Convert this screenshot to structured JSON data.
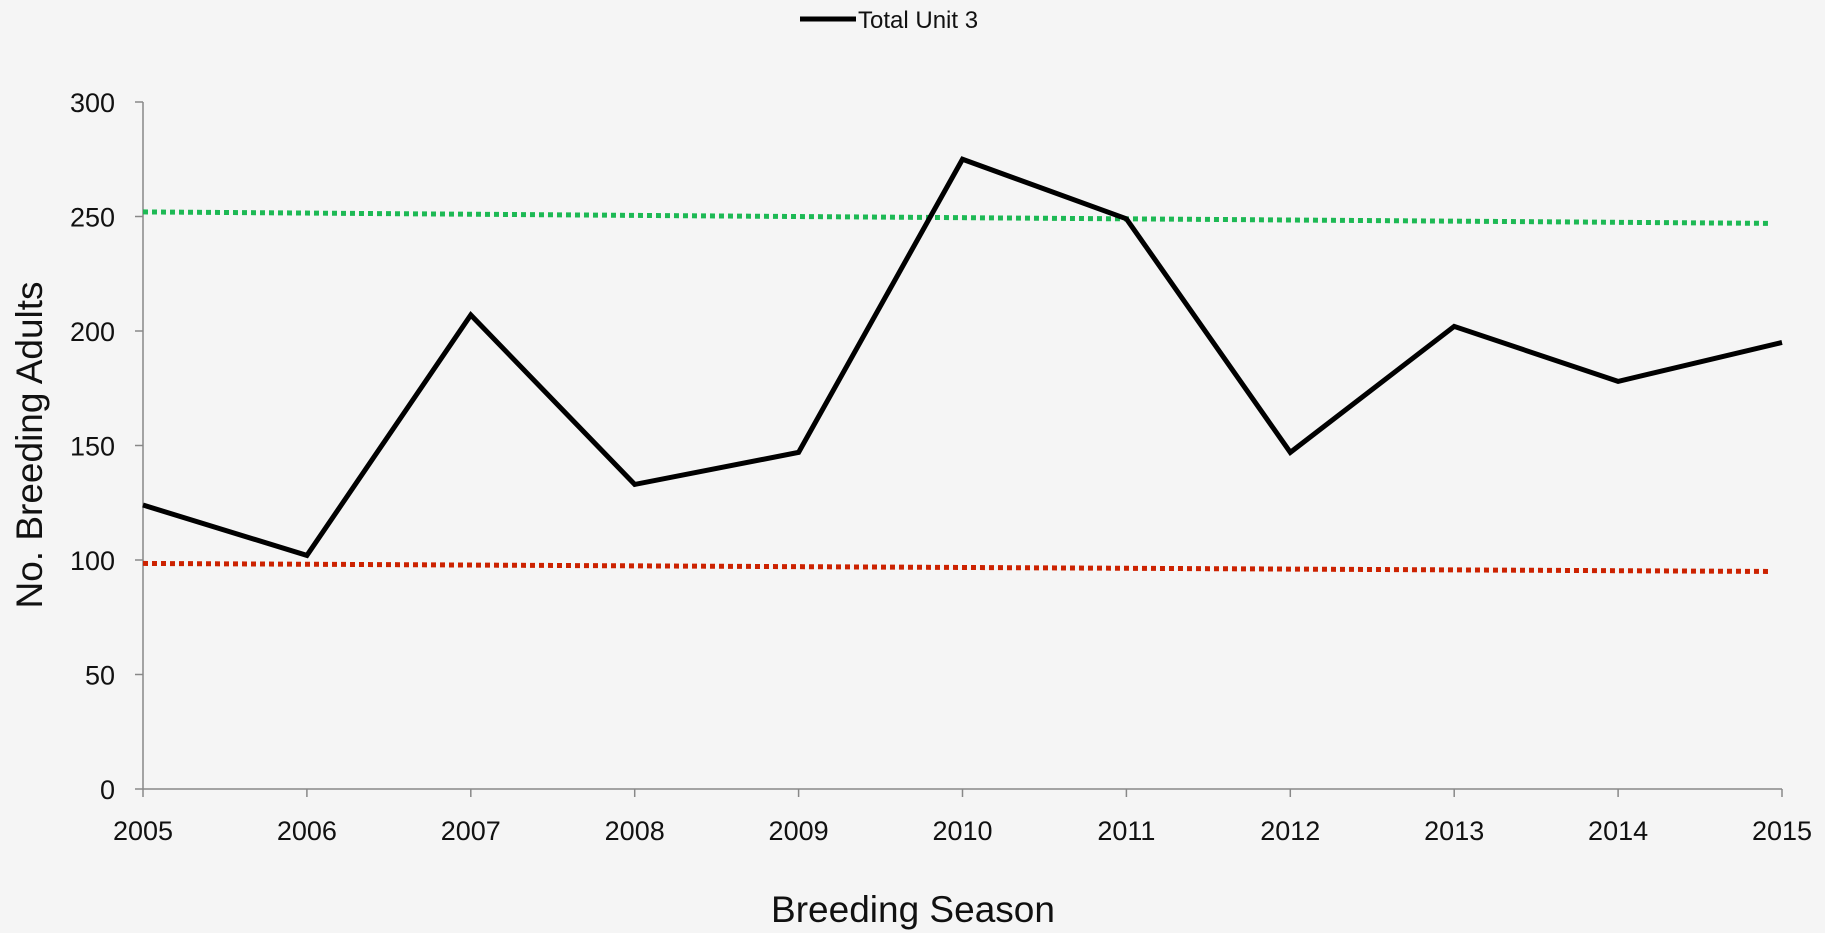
{
  "chart_data": {
    "type": "line",
    "title": "",
    "xlabel": "Breeding Season",
    "ylabel": "No. Breeding Adults",
    "x": [
      2005,
      2006,
      2007,
      2008,
      2009,
      2010,
      2011,
      2012,
      2013,
      2014,
      2015
    ],
    "xlim": [
      2005,
      2015
    ],
    "ylim": [
      0,
      300
    ],
    "yticks": [
      0,
      50,
      100,
      150,
      200,
      250,
      300
    ],
    "grid": false,
    "legend": {
      "position": "top-center"
    },
    "series": [
      {
        "name": "Total Unit 3",
        "color": "#000000",
        "style": "solid",
        "values": [
          124,
          102,
          207,
          133,
          147,
          275,
          249,
          147,
          202,
          178,
          195
        ]
      }
    ],
    "reference_lines": [
      {
        "color": "#1db954",
        "style": "dotted",
        "x": [
          2005,
          2015
        ],
        "y": [
          252,
          247
        ]
      },
      {
        "color": "#cc2200",
        "style": "dotted",
        "x": [
          2005,
          2015
        ],
        "y": [
          98.5,
          95
        ]
      }
    ]
  }
}
